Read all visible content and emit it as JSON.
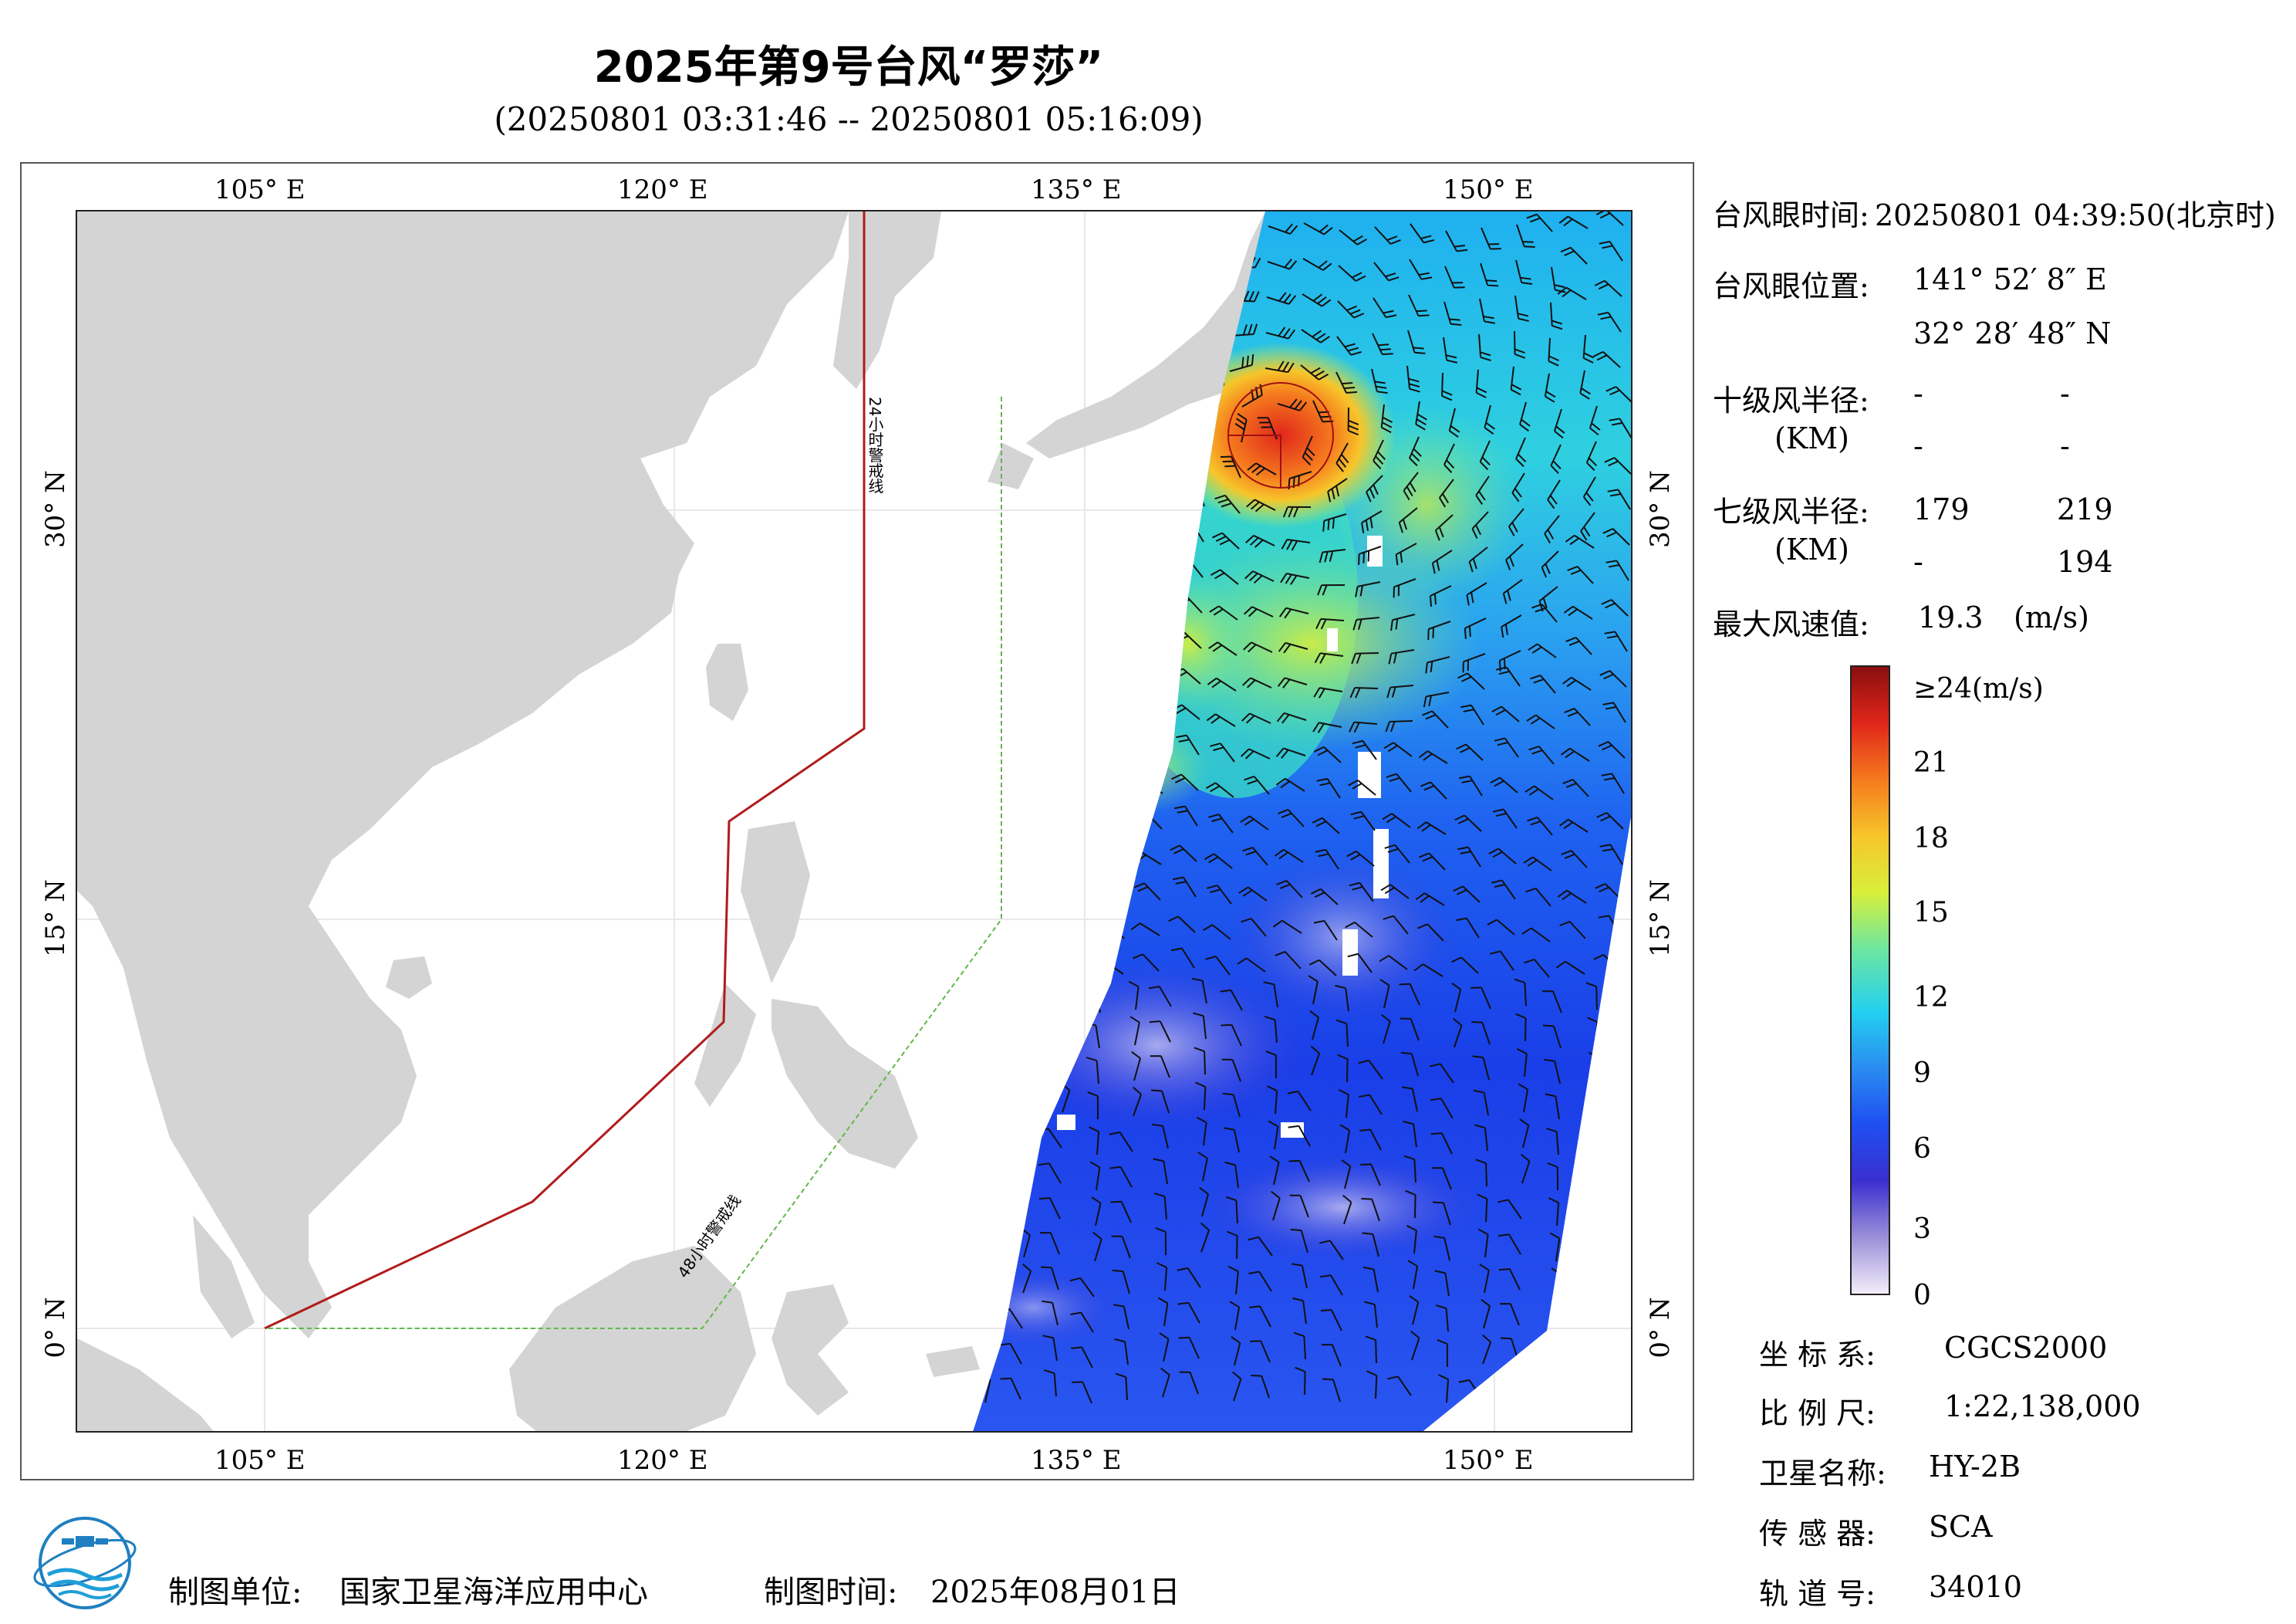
{
  "header": {
    "title": "2025年第9号台风“罗莎”",
    "subtitle": "(20250801 03:31:46 -- 20250801 05:16:09)"
  },
  "map": {
    "lon_labels": [
      "105° E",
      "120° E",
      "135° E",
      "150° E"
    ],
    "lat_labels": [
      "30° N",
      "15° N",
      "0° N"
    ],
    "lon_range": [
      98,
      155
    ],
    "lat_range": [
      -4,
      41
    ],
    "warning_line_24h_label": "24小时警戒线",
    "warning_line_48h_label": "48小时警戒线",
    "colors": {
      "land": "#d4d4d4",
      "warning_24h": "#b01b1b",
      "warning_48h": "#5fb848"
    }
  },
  "info": {
    "eye_time_label": "台风眼时间:",
    "eye_time_value": "20250801 04:39:50(北京时)",
    "eye_pos_label": "台风眼位置:",
    "eye_lon": "141° 52′ 8″ E",
    "eye_lat": "32° 28′ 48″ N",
    "r10_label": "十级风半径:",
    "r10_km": "(KM)",
    "r10_values": [
      "-",
      "-",
      "-",
      "-"
    ],
    "r7_label": "七级风半径:",
    "r7_km": "(KM)",
    "r7_values": [
      "179",
      "219",
      "-",
      "194"
    ],
    "max_wind_label": "最大风速值:",
    "max_wind_value": "19.3",
    "max_wind_unit": "(m/s)"
  },
  "colorbar": {
    "top_label": "≥24(m/s)",
    "ticks": [
      "21",
      "18",
      "15",
      "12",
      "9",
      "6",
      "3",
      "0"
    ],
    "colors": [
      "#f2eefa",
      "#9b8fd8",
      "#3a2fd0",
      "#1f4ff0",
      "#2a8cf0",
      "#23d0f0",
      "#6ee6a0",
      "#d8ef3a",
      "#f7c52a",
      "#f57a1e",
      "#e0261a",
      "#8a0f0f"
    ]
  },
  "meta": {
    "coord_label": "坐 标 系:",
    "coord_value": "CGCS2000",
    "scale_label": "比 例 尺:",
    "scale_value": "1:22,138,000",
    "sat_label": "卫星名称:",
    "sat_value": "HY-2B",
    "sensor_label": "传 感 器:",
    "sensor_value": "SCA",
    "orbit_label": "轨 道 号:",
    "orbit_value": "34010"
  },
  "footer": {
    "org_label": "制图单位:",
    "org_value": "国家卫星海洋应用中心",
    "date_label": "制图时间:",
    "date_value": "2025年08月01日"
  }
}
